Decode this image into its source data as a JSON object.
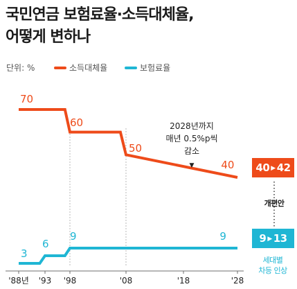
{
  "title": {
    "line1": "국민연금 보험료율·소득대체율,",
    "line2": "어떻게 변하나"
  },
  "unit_label": "단위: %",
  "colors": {
    "replacement": "#ee4b1a",
    "contribution": "#1fb6d4",
    "grid": "#9a9a9a",
    "axis": "#6d6d6d"
  },
  "chart_data": {
    "type": "line",
    "title": "국민연금 보험료율·소득대체율, 어떻게 변하나",
    "unit": "%",
    "x_ticks": [
      "'88년",
      "'93",
      "'98",
      "'08",
      "'18",
      "'28"
    ],
    "series": [
      {
        "name": "소득대체율",
        "points": [
          [
            "1988",
            70
          ],
          [
            "1997",
            70
          ],
          [
            "1998",
            60
          ],
          [
            "2007",
            60
          ],
          [
            "2008",
            50
          ],
          [
            "2028",
            40
          ]
        ],
        "labels": [
          [
            "1988",
            "70"
          ],
          [
            "1998",
            "60"
          ],
          [
            "2008",
            "50"
          ],
          [
            "2026",
            "40"
          ]
        ]
      },
      {
        "name": "보험료율",
        "points": [
          [
            "1988",
            3
          ],
          [
            "1992",
            3
          ],
          [
            "1993",
            6
          ],
          [
            "1997",
            6
          ],
          [
            "1998",
            9
          ],
          [
            "2028",
            9
          ]
        ],
        "labels": [
          [
            "1988",
            "3"
          ],
          [
            "1993",
            "6"
          ],
          [
            "1998",
            "9"
          ],
          [
            "2026",
            "9"
          ]
        ]
      }
    ],
    "annotation": {
      "lines": [
        "2028년까지",
        "매년 0.5%p씩",
        "감소"
      ],
      "marker": "▼"
    }
  },
  "reform": {
    "replacement": {
      "from": "40",
      "to": "42"
    },
    "contribution": {
      "from": "9",
      "to": "13"
    },
    "label": "개편안",
    "contribution_note": {
      "line1": "세대별",
      "line2": "차등 인상"
    }
  }
}
